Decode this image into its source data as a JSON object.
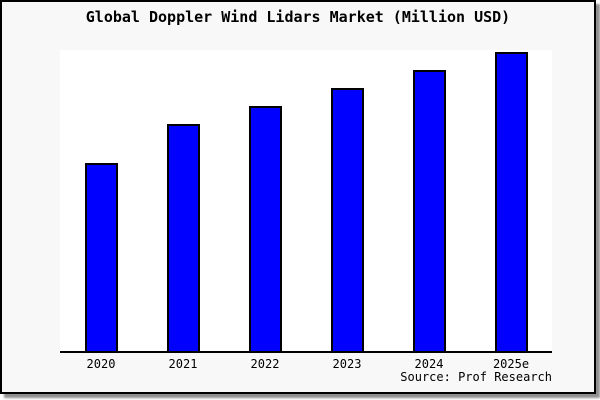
{
  "page": {
    "title": "Global Doppler Wind Lidars Market (Million USD)",
    "source_note": "Source: Prof Research"
  },
  "chart_data": {
    "type": "bar",
    "title": "Global Doppler Wind Lidars Market (Million USD)",
    "categories": [
      "2020",
      "2021",
      "2022",
      "2023",
      "2024",
      "2025e"
    ],
    "values_relative_pct_of_max": [
      63,
      76,
      82,
      88,
      94,
      100
    ],
    "value_axis_note": "no y-axis ticks, labels or gridlines are shown; values are relative bar heights with tallest bar (2025e) = 100",
    "xlabel": "",
    "ylabel": "",
    "grid": false,
    "legend": "none",
    "bar_color": "#0000ff",
    "bar_edge_color": "#000000",
    "plot_background": "#ffffff",
    "page_background": "#f8f8f8",
    "frame_border_color": "#000000",
    "source_note": "Source: Prof Research"
  }
}
